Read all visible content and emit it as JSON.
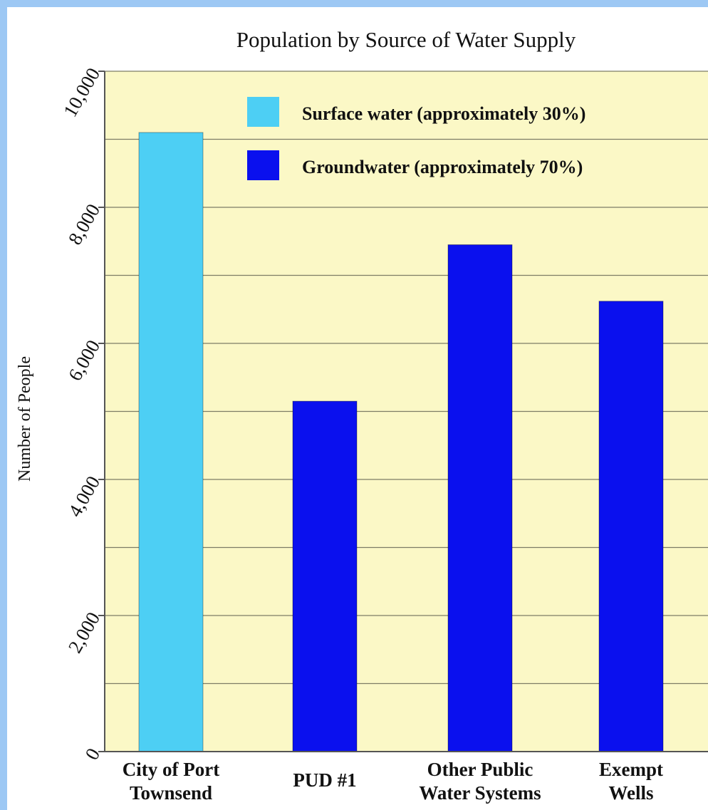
{
  "chart_data": {
    "type": "bar",
    "title": "Population by Source of Water Supply",
    "xlabel": "",
    "ylabel": "Number of People",
    "ylim": [
      0,
      10000
    ],
    "yticks": [
      "0",
      "2,000",
      "4,000",
      "6,000",
      "8,000",
      "10,000"
    ],
    "grid": true,
    "legend_position": "top-right",
    "background_color": "#fbf8c6",
    "categories": [
      [
        "City of Port",
        "Townsend"
      ],
      [
        "PUD #1"
      ],
      [
        "Other Public",
        "Water Systems"
      ],
      [
        "Exempt",
        "Wells"
      ]
    ],
    "series": [
      {
        "name": "Surface water (approximately 30%)",
        "color": "#4dcff4",
        "values": [
          9100,
          0,
          0,
          0
        ]
      },
      {
        "name": "Groundwater (approximately 70%)",
        "color": "#0a10ee",
        "values": [
          0,
          5150,
          7450,
          6620
        ]
      }
    ]
  }
}
